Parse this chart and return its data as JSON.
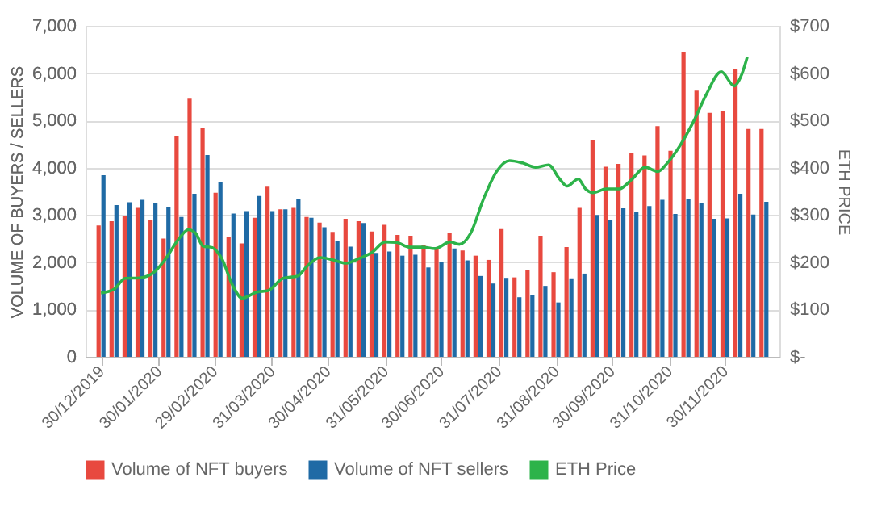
{
  "chart_data": {
    "type": "bar",
    "ylabel": "VOLUME OF BUYERS / SELLERS",
    "y2label": "ETH PRICE",
    "x": [
      "2019-12-30",
      "2020-01-06",
      "2020-01-13",
      "2020-01-20",
      "2020-01-27",
      "2020-02-03",
      "2020-02-10",
      "2020-02-17",
      "2020-02-24",
      "2020-03-02",
      "2020-03-09",
      "2020-03-16",
      "2020-03-23",
      "2020-03-30",
      "2020-04-06",
      "2020-04-13",
      "2020-04-20",
      "2020-04-27",
      "2020-05-04",
      "2020-05-11",
      "2020-05-18",
      "2020-05-25",
      "2020-06-01",
      "2020-06-08",
      "2020-06-15",
      "2020-06-22",
      "2020-06-29",
      "2020-07-06",
      "2020-07-13",
      "2020-07-20",
      "2020-07-27",
      "2020-08-03",
      "2020-08-10",
      "2020-08-17",
      "2020-08-24",
      "2020-08-31",
      "2020-09-07",
      "2020-09-14",
      "2020-09-21",
      "2020-09-28",
      "2020-10-05",
      "2020-10-12",
      "2020-10-19",
      "2020-10-26",
      "2020-11-02",
      "2020-11-09",
      "2020-11-16",
      "2020-11-23",
      "2020-11-30",
      "2020-12-07",
      "2020-12-14",
      "2020-12-21"
    ],
    "series": [
      {
        "name": "Volume of NFT buyers",
        "color": "#e8493f",
        "values": [
          2780,
          2870,
          2970,
          3150,
          2900,
          2500,
          4670,
          5460,
          4840,
          3470,
          2530,
          2400,
          2940,
          3600,
          3120,
          3150,
          2960,
          2840,
          2640,
          2920,
          2870,
          2650,
          2790,
          2580,
          2560,
          2370,
          2320,
          2620,
          2250,
          2140,
          2050,
          2700,
          1680,
          1840,
          2560,
          1790,
          2320,
          3150,
          4590,
          4020,
          4080,
          4320,
          4260,
          4880,
          4360,
          6450,
          5630,
          5160,
          5200,
          6080,
          4820,
          4820
        ]
      },
      {
        "name": "Volume of NFT sellers",
        "color": "#1f6aa5",
        "values": [
          3840,
          3210,
          3270,
          3320,
          3250,
          3170,
          2960,
          3450,
          4270,
          3700,
          3030,
          3080,
          3400,
          3080,
          3120,
          3330,
          2940,
          2740,
          2460,
          2330,
          2830,
          2200,
          2230,
          2140,
          2160,
          1890,
          2000,
          2290,
          2040,
          1710,
          1550,
          1670,
          1260,
          1310,
          1500,
          1150,
          1660,
          1760,
          3000,
          2900,
          3140,
          3060,
          3190,
          3320,
          3020,
          3340,
          3260,
          2920,
          2930,
          3450,
          3010,
          3280
        ]
      },
      {
        "name": "ETH Price",
        "type": "line",
        "axis": "y2",
        "color": "#2db34a",
        "x": [
          "2019-12-30",
          "2020-01-06",
          "2020-01-12",
          "2020-01-20",
          "2020-01-27",
          "2020-02-02",
          "2020-02-10",
          "2020-02-15",
          "2020-02-19",
          "2020-02-23",
          "2020-02-28",
          "2020-03-04",
          "2020-03-10",
          "2020-03-15",
          "2020-03-23",
          "2020-03-29",
          "2020-04-06",
          "2020-04-14",
          "2020-04-19",
          "2020-04-26",
          "2020-05-03",
          "2020-05-10",
          "2020-05-17",
          "2020-05-24",
          "2020-05-31",
          "2020-06-06",
          "2020-06-13",
          "2020-06-20",
          "2020-06-27",
          "2020-07-05",
          "2020-07-10",
          "2020-07-16",
          "2020-07-23",
          "2020-07-30",
          "2020-08-06",
          "2020-08-13",
          "2020-08-20",
          "2020-08-27",
          "2020-09-02",
          "2020-09-06",
          "2020-09-12",
          "2020-09-16",
          "2020-09-20",
          "2020-09-27",
          "2020-10-04",
          "2020-10-11",
          "2020-10-18",
          "2020-10-25",
          "2020-10-30",
          "2020-11-06",
          "2020-11-13",
          "2020-11-20",
          "2020-11-28",
          "2020-12-05",
          "2020-12-09",
          "2020-12-12"
        ],
        "values": [
          135,
          143,
          166,
          167,
          177,
          203,
          250,
          269,
          261,
          234,
          231,
          208,
          150,
          124,
          137,
          140,
          166,
          171,
          192,
          210,
          205,
          198,
          208,
          221,
          243,
          242,
          232,
          232,
          229,
          243,
          238,
          261,
          334,
          392,
          415,
          410,
          401,
          406,
          376,
          361,
          376,
          355,
          347,
          355,
          355,
          376,
          401,
          392,
          410,
          448,
          497,
          555,
          603,
          573,
          597,
          634
        ]
      }
    ],
    "xlim": [
      "2019-12-26",
      "2020-12-25"
    ],
    "xticks": [
      {
        "value": "2019-12-30",
        "label": "30/12/2019"
      },
      {
        "value": "2020-01-30",
        "label": "30/01/2020"
      },
      {
        "value": "2020-02-29",
        "label": "29/02/2020"
      },
      {
        "value": "2020-03-31",
        "label": "31/03/2020"
      },
      {
        "value": "2020-04-30",
        "label": "30/04/2020"
      },
      {
        "value": "2020-05-31",
        "label": "31/05/2020"
      },
      {
        "value": "2020-06-30",
        "label": "30/06/2020"
      },
      {
        "value": "2020-07-31",
        "label": "31/07/2020"
      },
      {
        "value": "2020-08-31",
        "label": "31/08/2020"
      },
      {
        "value": "2020-09-30",
        "label": "30/09/2020"
      },
      {
        "value": "2020-10-31",
        "label": "31/10/2020"
      },
      {
        "value": "2020-11-30",
        "label": "30/11/2020"
      }
    ],
    "ylim": [
      0,
      7000
    ],
    "yticks": [
      0,
      {
        "value": 1000,
        "label": "1,000"
      },
      {
        "value": 2000,
        "label": "2,000"
      },
      {
        "value": 3000,
        "label": "3,000"
      },
      {
        "value": 4000,
        "label": "4,000"
      },
      {
        "value": 5000,
        "label": "5,000"
      },
      {
        "value": 6000,
        "label": "6,000"
      },
      {
        "value": 7000,
        "label": "7,000"
      }
    ],
    "y2lim": [
      0,
      700
    ],
    "y2ticks": [
      {
        "value": 0,
        "label": "$-"
      },
      {
        "value": 100,
        "label": "$100"
      },
      {
        "value": 200,
        "label": "$200"
      },
      {
        "value": 300,
        "label": "$300"
      },
      {
        "value": 400,
        "label": "$400"
      },
      {
        "value": 500,
        "label": "$500"
      },
      {
        "value": 600,
        "label": "$600"
      },
      {
        "value": 700,
        "label": "$700"
      }
    ],
    "grid": "y",
    "legend": "bottom",
    "marker": "none",
    "line_style": "solid"
  }
}
